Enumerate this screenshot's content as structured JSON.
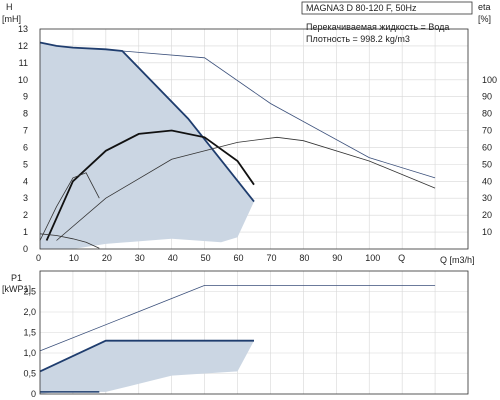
{
  "header": {
    "pump_title": "MAGNA3 D 80-120 F, 50Hz",
    "medium": "Перекачиваемая жидкость = Вода",
    "density": "Плотность = 998.2 kg/m3"
  },
  "chart_data": [
    {
      "type": "line",
      "ylabel": "H",
      "yunit": "[mH]",
      "y2label": "eta",
      "y2unit": "[%]",
      "xlabel": "Q [m3/h]",
      "xlim": [
        0,
        130
      ],
      "ylim": [
        0,
        13
      ],
      "y2lim": [
        0,
        130
      ],
      "grid": true,
      "x_ticks": [
        "0",
        "10",
        "20",
        "30",
        "40",
        "50",
        "60",
        "70",
        "80",
        "90",
        "100",
        "Q"
      ],
      "y_ticks": [
        "0",
        "1",
        "2",
        "3",
        "4",
        "5",
        "6",
        "7",
        "8",
        "9",
        "10",
        "11",
        "12",
        "13"
      ],
      "y2_ticks": [
        "10",
        "20",
        "30",
        "40",
        "50",
        "60",
        "70",
        "80",
        "90",
        "100"
      ],
      "series": [
        {
          "role": "operating-area",
          "x": [
            0,
            5,
            10,
            20,
            25,
            45,
            65,
            60,
            55,
            40,
            20,
            10,
            0
          ],
          "y": [
            12.2,
            12.0,
            11.9,
            11.8,
            11.7,
            7.7,
            2.8,
            0.7,
            0.4,
            0.6,
            0.3,
            0.0,
            0.0
          ]
        },
        {
          "role": "max-head",
          "x": [
            0,
            5,
            10,
            20,
            25,
            45,
            65
          ],
          "y": [
            12.2,
            12.0,
            11.9,
            11.8,
            11.7,
            7.7,
            2.8
          ]
        },
        {
          "role": "max-speed-head-extended",
          "x": [
            25,
            50,
            70,
            100,
            120
          ],
          "y": [
            11.7,
            11.3,
            8.6,
            5.4,
            4.2
          ]
        },
        {
          "role": "efficiency-max",
          "x": [
            2,
            10,
            20,
            30,
            40,
            50,
            60,
            65
          ],
          "y2": [
            5,
            40,
            58,
            68,
            70,
            66,
            52,
            38
          ]
        },
        {
          "role": "efficiency-extended",
          "x": [
            5,
            20,
            40,
            60,
            72,
            80,
            100,
            120
          ],
          "y2": [
            5,
            30,
            53,
            63,
            66,
            64,
            52,
            36
          ]
        },
        {
          "role": "efficiency-min",
          "x": [
            0,
            5,
            10,
            14,
            18
          ],
          "y2": [
            5,
            25,
            42,
            45,
            30
          ]
        },
        {
          "role": "min-head",
          "x": [
            0,
            5,
            10,
            14,
            18
          ],
          "y": [
            0.9,
            0.8,
            0.6,
            0.4,
            0.05
          ]
        }
      ]
    },
    {
      "type": "line",
      "ylabel": "P1",
      "yunit": "[kWP1]",
      "xlim": [
        0,
        130
      ],
      "ylim": [
        0,
        3.0
      ],
      "grid": true,
      "y_ticks": [
        "0",
        "0,5",
        "1,0",
        "1,5",
        "2,0",
        "2,5"
      ],
      "series": [
        {
          "role": "power-area",
          "x": [
            0,
            20,
            65,
            60,
            40,
            25,
            20,
            5,
            0
          ],
          "y": [
            0.55,
            1.3,
            1.3,
            0.55,
            0.45,
            0.15,
            0.05,
            0.05,
            0.0
          ]
        },
        {
          "role": "power-max",
          "x": [
            0,
            20,
            65
          ],
          "y": [
            0.55,
            1.3,
            1.3
          ]
        },
        {
          "role": "power-extended",
          "x": [
            0,
            50,
            60,
            120
          ],
          "y": [
            1.05,
            2.65,
            2.65,
            2.65
          ]
        },
        {
          "role": "power-min",
          "x": [
            0,
            18
          ],
          "y": [
            0.05,
            0.05
          ]
        }
      ]
    }
  ]
}
